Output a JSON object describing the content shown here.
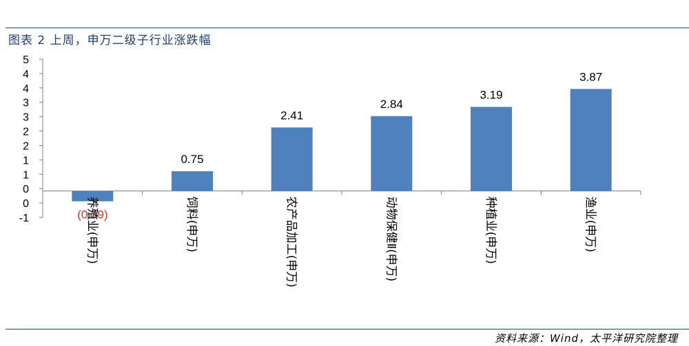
{
  "header": {
    "title": "图表 2 上周，申万二级子行业涨跌幅"
  },
  "footer": {
    "source": "资料来源：Wind，太平洋研究院整理"
  },
  "chart_data": {
    "type": "bar",
    "title": "",
    "xlabel": "",
    "ylabel": "",
    "categories": [
      "养殖业(申万)",
      "饲料(申万)",
      "农产品加工(申万)",
      "动物保健Ⅱ(申万)",
      "种植业(申万)",
      "渔业(申万)"
    ],
    "values": [
      -0.39,
      0.75,
      2.41,
      2.84,
      3.19,
      3.87
    ],
    "value_labels": [
      "(0.39)",
      "0.75",
      "2.41",
      "2.84",
      "3.19",
      "3.87"
    ],
    "ylim": [
      -1,
      5
    ],
    "y_tick_labels": [
      "5",
      "4",
      "4",
      "3",
      "3",
      "2",
      "2",
      "1",
      "1",
      "0",
      "0",
      "-1"
    ],
    "grid": false,
    "legend": "none",
    "colors": {
      "bar": "#4f81bd",
      "negative_label": "#e03030",
      "rule": "#1f3f6b"
    }
  }
}
